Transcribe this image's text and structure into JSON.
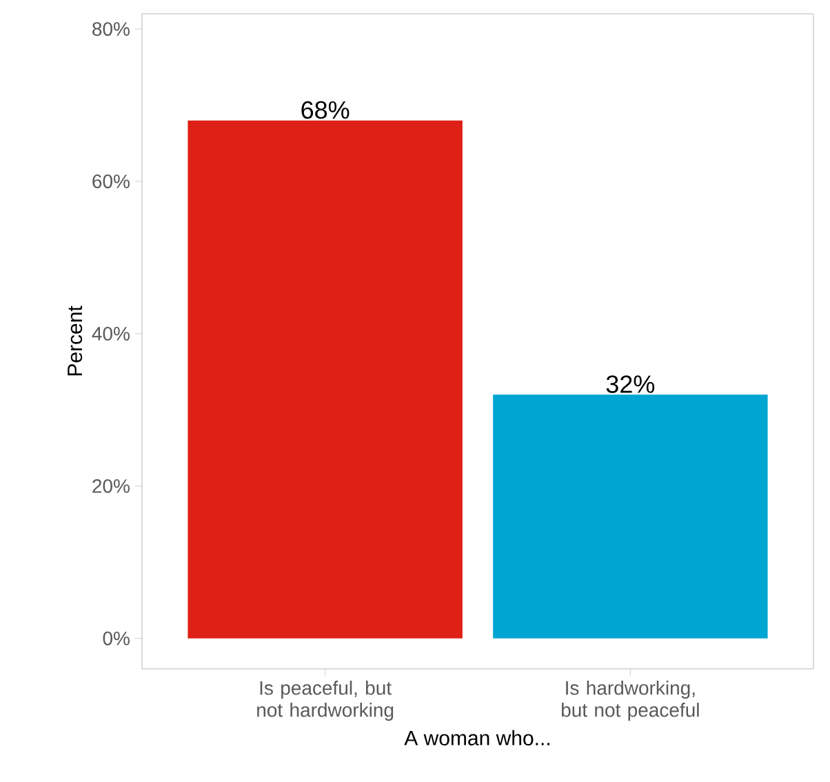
{
  "chart_data": {
    "type": "bar",
    "xlabel": "A woman who...",
    "ylabel": "Percent",
    "categories": [
      "Is peaceful, but not hardworking",
      "Is hardworking, but not peaceful"
    ],
    "values": [
      68,
      32
    ],
    "colors": [
      "#de2016",
      "#00a6d1"
    ],
    "value_labels": [
      "68%",
      "32%"
    ],
    "ylim": [
      -4,
      82
    ],
    "yticks": [
      {
        "value": 0,
        "label": "0%"
      },
      {
        "value": 20,
        "label": "20%"
      },
      {
        "value": 40,
        "label": "40%"
      },
      {
        "value": 60,
        "label": "60%"
      },
      {
        "value": 80,
        "label": "80%"
      }
    ],
    "grid": false
  }
}
